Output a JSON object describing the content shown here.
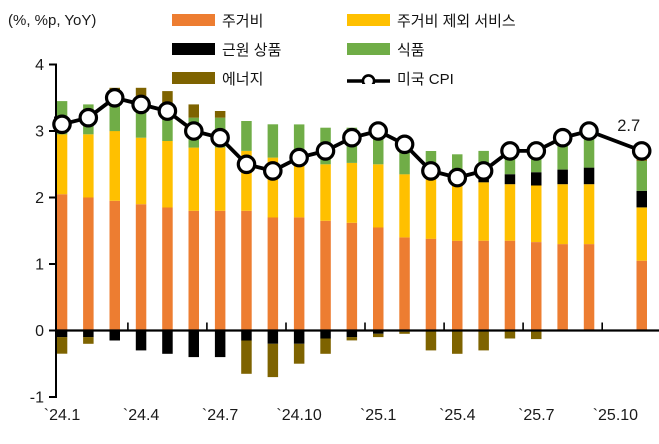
{
  "chart_data": {
    "type": "bar",
    "subtype": "stacked-bar-with-line",
    "title": "",
    "units": "(%, %p, YoY)",
    "ylabel": "",
    "xlabel": "",
    "ylim": [
      -1,
      4
    ],
    "yticks": [
      -1,
      0,
      1,
      2,
      3,
      4
    ],
    "grid": false,
    "legend_position": "top",
    "categories": [
      "`24.1",
      "`24.2",
      "`24.3",
      "`24.4",
      "`24.5",
      "`24.6",
      "`24.7",
      "`24.8",
      "`24.9",
      "`24.10",
      "`24.11",
      "`24.12",
      "`25.1",
      "`25.2",
      "`25.3",
      "`25.4",
      "`25.5",
      "`25.6",
      "`25.7",
      "`25.8",
      "`25.9",
      "`25.10",
      "`25.11"
    ],
    "x_tick_labels": [
      "`24.1",
      "`24.4",
      "`24.7",
      "`24.10",
      "`25.1",
      "`25.4",
      "`25.7",
      "`25.10"
    ],
    "x_tick_label_month_index": [
      0,
      3,
      6,
      9,
      12,
      15,
      18,
      21
    ],
    "missing_months": [
      "`25.10"
    ],
    "series": [
      {
        "name": "주거비",
        "color": "#ED7D31",
        "values": [
          2.05,
          2.0,
          1.95,
          1.9,
          1.85,
          1.8,
          1.8,
          1.8,
          1.7,
          1.7,
          1.65,
          1.62,
          1.55,
          1.4,
          1.38,
          1.35,
          1.35,
          1.35,
          1.33,
          1.3,
          1.3,
          null,
          1.05
        ]
      },
      {
        "name": "주거비 제외 서비스",
        "color": "#FFC000",
        "values": [
          0.9,
          0.95,
          1.05,
          1.0,
          1.0,
          0.95,
          0.95,
          0.9,
          0.9,
          0.85,
          0.85,
          0.9,
          0.95,
          0.95,
          0.92,
          0.9,
          0.88,
          0.85,
          0.85,
          0.9,
          0.9,
          null,
          0.8
        ]
      },
      {
        "name": "근원 상품",
        "color": "#000000",
        "values": [
          -0.1,
          -0.1,
          -0.15,
          -0.3,
          -0.35,
          -0.4,
          -0.4,
          -0.15,
          -0.2,
          -0.2,
          -0.12,
          -0.1,
          -0.05,
          -0.02,
          0.0,
          0.05,
          0.1,
          0.15,
          0.2,
          0.22,
          0.25,
          null,
          0.25
        ]
      },
      {
        "name": "식품",
        "color": "#70AD47",
        "values": [
          0.5,
          0.45,
          0.5,
          0.5,
          0.5,
          0.45,
          0.45,
          0.45,
          0.5,
          0.55,
          0.55,
          0.53,
          0.55,
          0.5,
          0.4,
          0.35,
          0.37,
          0.45,
          0.45,
          0.45,
          0.5,
          null,
          0.45
        ]
      },
      {
        "name": "에너지",
        "color": "#7E6300",
        "values": [
          -0.25,
          -0.1,
          0.15,
          0.25,
          0.25,
          0.2,
          0.1,
          -0.5,
          -0.5,
          -0.3,
          -0.23,
          -0.05,
          -0.05,
          -0.03,
          -0.3,
          -0.35,
          -0.3,
          -0.12,
          -0.13,
          0.03,
          0.05,
          null,
          0.12
        ]
      }
    ],
    "line_series": {
      "name": "미국 CPI",
      "color": "#000000",
      "marker": "white-circle",
      "values": [
        3.1,
        3.2,
        3.5,
        3.4,
        3.3,
        3.0,
        2.9,
        2.5,
        2.4,
        2.6,
        2.7,
        2.9,
        3.0,
        2.8,
        2.4,
        2.3,
        2.4,
        2.7,
        2.7,
        2.9,
        3.0,
        null,
        2.7
      ],
      "clip_entry_value": 3.2
    },
    "annotation": {
      "text": "2.7",
      "month": "`25.11"
    },
    "legend_columns": [
      [
        "주거비",
        "근원 상품",
        "에너지"
      ],
      [
        "주거비 제외 서비스",
        "식품",
        "미국 CPI"
      ]
    ]
  }
}
